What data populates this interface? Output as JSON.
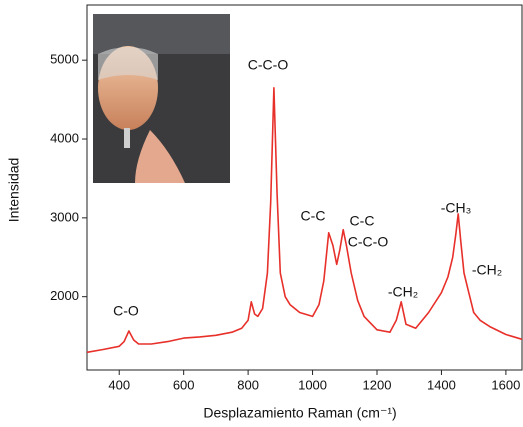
{
  "chart_data": {
    "type": "line",
    "x_label": "Desplazamiento Raman (cm⁻¹)",
    "y_label": "Intensidad",
    "x": [
      300,
      350,
      400,
      415,
      430,
      445,
      460,
      500,
      550,
      600,
      650,
      700,
      750,
      780,
      800,
      810,
      820,
      830,
      845,
      860,
      870,
      880,
      890,
      900,
      915,
      930,
      960,
      1000,
      1020,
      1035,
      1050,
      1063,
      1075,
      1085,
      1095,
      1105,
      1120,
      1140,
      1160,
      1200,
      1240,
      1260,
      1275,
      1290,
      1320,
      1360,
      1400,
      1420,
      1435,
      1445,
      1452,
      1460,
      1470,
      1485,
      1500,
      1520,
      1550,
      1600,
      1650
    ],
    "series": [
      {
        "name": null,
        "color": "#e8302a",
        "values": [
          1295,
          1330,
          1370,
          1430,
          1565,
          1450,
          1400,
          1400,
          1430,
          1475,
          1490,
          1510,
          1550,
          1600,
          1700,
          1935,
          1780,
          1750,
          1850,
          2300,
          3200,
          4650,
          3300,
          2300,
          2000,
          1900,
          1800,
          1750,
          1900,
          2200,
          2810,
          2650,
          2410,
          2600,
          2850,
          2650,
          2300,
          1950,
          1750,
          1580,
          1550,
          1700,
          1935,
          1650,
          1600,
          1800,
          2050,
          2250,
          2500,
          2800,
          3050,
          2700,
          2300,
          2050,
          1800,
          1700,
          1620,
          1520,
          1460
        ]
      }
    ],
    "annotations": [
      "C-O",
      "C-C-O",
      "C-C",
      "C-C",
      "C-C-O",
      "-CH₂",
      "-CH₃",
      "-CH₂"
    ],
    "xlim": [
      300,
      1650
    ],
    "ylim": [
      1070,
      5700
    ],
    "xticks": [
      400,
      600,
      800,
      1000,
      1200,
      1400,
      1600
    ],
    "yticks": [
      2000,
      3000,
      4000,
      5000
    ]
  }
}
